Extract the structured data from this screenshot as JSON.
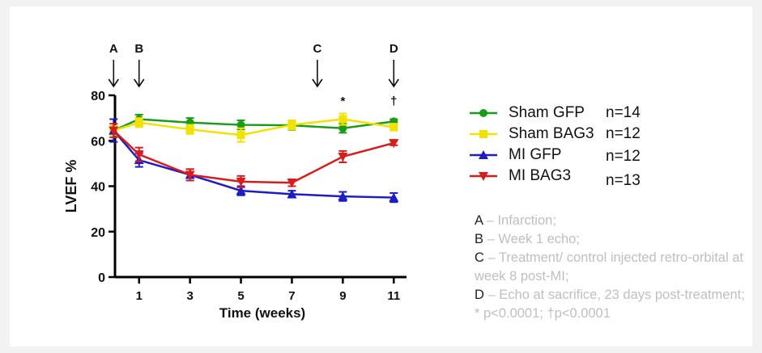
{
  "chart_data": {
    "type": "line",
    "ylabel": "LVEF %",
    "xlabel": "Time (weeks)",
    "ylim": [
      0,
      80
    ],
    "y_ticks": [
      0,
      20,
      40,
      60,
      80
    ],
    "x_ticks": [
      1,
      3,
      5,
      7,
      9,
      11
    ],
    "xlim": [
      -0.2,
      11.5
    ],
    "series": [
      {
        "name": "Sham GFP",
        "n_label": "n=14",
        "color": "#1a9c1a",
        "marker": "circle",
        "x": [
          0,
          1,
          3,
          5,
          7,
          9,
          11
        ],
        "y": [
          64.5,
          69.5,
          68,
          67,
          66.8,
          65.5,
          68.5
        ],
        "err": [
          2,
          2,
          2,
          2,
          2,
          2,
          1
        ]
      },
      {
        "name": "Sham BAG3",
        "n_label": "n=12",
        "color": "#f2e200",
        "marker": "square",
        "x": [
          0,
          1,
          3,
          5,
          7,
          9,
          11
        ],
        "y": [
          64.5,
          68,
          65,
          62.5,
          67,
          69.5,
          66
        ],
        "err": [
          2,
          2,
          2,
          3,
          2,
          2.5,
          1.5
        ]
      },
      {
        "name": "MI GFP",
        "n_label": "n=12",
        "color": "#1c1cc8",
        "marker": "triangle-up",
        "x": [
          0,
          1,
          3,
          5,
          7,
          9,
          11
        ],
        "y": [
          64.5,
          51.5,
          45,
          38,
          36.5,
          35.5,
          35
        ],
        "err": [
          5,
          3,
          2.5,
          2,
          1.5,
          2,
          2
        ]
      },
      {
        "name": "MI BAG3",
        "n_label": "n=13",
        "color": "#d81c1c",
        "marker": "triangle-down",
        "x": [
          0,
          1,
          3,
          5,
          7,
          9,
          11
        ],
        "y": [
          64.5,
          54,
          45,
          42,
          41.5,
          53,
          59
        ],
        "err": [
          3,
          3,
          2.5,
          2.5,
          1.5,
          2.5,
          1
        ]
      }
    ],
    "event_markers": [
      {
        "label": "A",
        "x": 0
      },
      {
        "label": "B",
        "x": 1
      },
      {
        "label": "C",
        "x": 8
      },
      {
        "label": "D",
        "x": 11
      }
    ],
    "significance": [
      {
        "symbol": "*",
        "x": 9
      },
      {
        "symbol": "†",
        "x": 11
      }
    ]
  },
  "notes": [
    {
      "key": "A",
      "text": " – Infarction;"
    },
    {
      "key": "B",
      "text": " – Week 1 echo;"
    },
    {
      "key": "C",
      "text": " – Treatment/ control injected retro-orbital at week 8 post-MI;"
    },
    {
      "key": "D",
      "text": " – Echo at sacrifice, 23 days post-treatment; * p<0.0001; †p<0.0001"
    }
  ]
}
